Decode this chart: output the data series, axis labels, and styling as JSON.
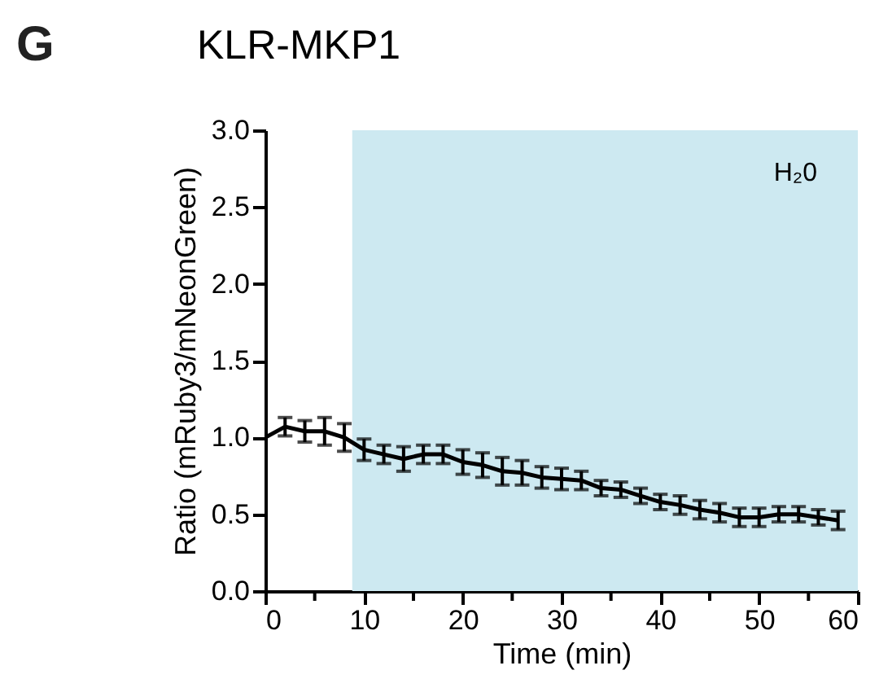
{
  "chart_data": {
    "type": "line",
    "title": "KLR-MKP1",
    "xlabel": "Time (min)",
    "ylabel": "Ratio (mRuby3/mNeonGreen)",
    "annotations": [
      "G"
    ],
    "x": [
      0,
      2,
      4,
      6,
      8,
      10,
      12,
      14,
      16,
      18,
      20,
      22,
      24,
      26,
      28,
      30,
      32,
      34,
      36,
      38,
      40,
      42,
      44,
      46,
      48,
      50,
      52,
      54,
      56,
      58
    ],
    "series": [
      {
        "color": "#000000",
        "values": [
          1.0,
          1.07,
          1.04,
          1.04,
          1.0,
          0.92,
          0.89,
          0.86,
          0.89,
          0.89,
          0.84,
          0.82,
          0.78,
          0.77,
          0.74,
          0.73,
          0.72,
          0.67,
          0.66,
          0.62,
          0.58,
          0.56,
          0.53,
          0.51,
          0.48,
          0.48,
          0.5,
          0.5,
          0.48,
          0.46
        ],
        "errors": [
          null,
          0.06,
          0.07,
          0.09,
          0.09,
          0.07,
          0.06,
          0.08,
          0.06,
          0.06,
          0.08,
          0.08,
          0.09,
          0.08,
          0.07,
          0.07,
          0.06,
          0.05,
          0.05,
          0.05,
          0.05,
          0.06,
          0.06,
          0.06,
          0.06,
          0.06,
          0.05,
          0.05,
          0.05,
          0.06
        ]
      }
    ],
    "bands": [
      {
        "axis": "x",
        "from": 8.8,
        "to": 60,
        "label": "H₂0",
        "color": "#cde9f1"
      }
    ],
    "xlim": [
      0,
      60
    ],
    "ylim": [
      0,
      3.0
    ],
    "xticks": [
      0,
      {
        "value": 5,
        "label": null
      },
      10,
      {
        "value": 15,
        "label": null
      },
      20,
      {
        "value": 25,
        "label": null
      },
      30,
      {
        "value": 35,
        "label": null
      },
      40,
      {
        "value": 45,
        "label": null
      },
      50,
      {
        "value": 55,
        "label": null
      },
      60
    ],
    "yticks": [
      {
        "value": 0,
        "label": "0.0"
      },
      {
        "value": 0.5,
        "label": "0.5"
      },
      {
        "value": 1,
        "label": "1.0"
      },
      {
        "value": 1.5,
        "label": "1.5"
      },
      {
        "value": 2,
        "label": "2.0"
      },
      {
        "value": 2.5,
        "label": "2.5"
      },
      {
        "value": 3,
        "label": "3.0"
      }
    ],
    "grid": false,
    "marker": "none",
    "line_style": "solid"
  }
}
